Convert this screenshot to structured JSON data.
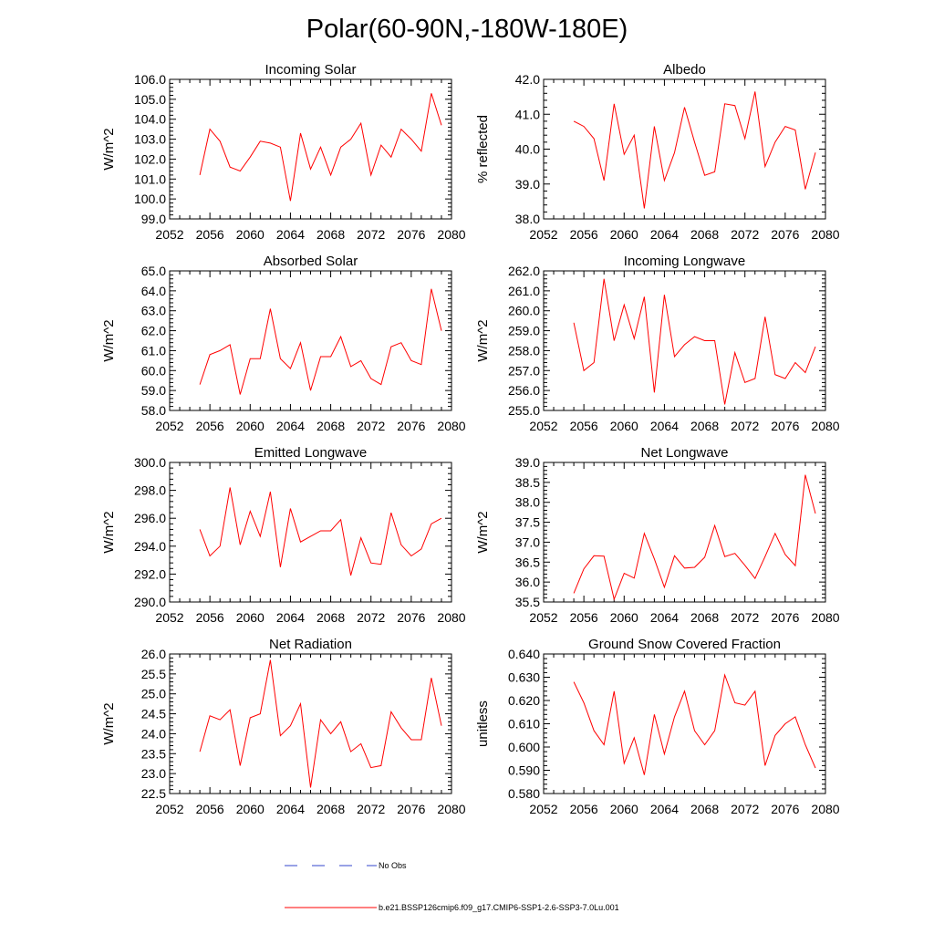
{
  "figure": {
    "title": "Polar(60-90N,-180W-180E)"
  },
  "legend": {
    "entries": [
      {
        "label": "No Obs",
        "color": "#3344cc",
        "style": "dashed"
      },
      {
        "label": "b.e21.BSSP126cmip6.f09_g17.CMIP6-SSP1-2.6-SSP3-7.0Lu.001",
        "color": "#ff0000",
        "style": "solid"
      }
    ]
  },
  "chart_data": [
    {
      "type": "line",
      "title": "Incoming Solar",
      "ylabel": "W/m^2",
      "xlim": [
        2052,
        2080
      ],
      "ylim": [
        99.0,
        106.0
      ],
      "xticks": [
        2052,
        2056,
        2060,
        2064,
        2068,
        2072,
        2076,
        2080
      ],
      "yticks": [
        "99.0",
        "100.0",
        "101.0",
        "102.0",
        "103.0",
        "104.0",
        "105.0",
        "106.0"
      ],
      "series": [
        {
          "color": "#ff0000",
          "x": [
            2055,
            2056,
            2057,
            2058,
            2059,
            2060,
            2061,
            2062,
            2063,
            2064,
            2065,
            2066,
            2067,
            2068,
            2069,
            2070,
            2071,
            2072,
            2073,
            2074,
            2075,
            2076,
            2077,
            2078,
            2079
          ],
          "values": [
            101.2,
            103.5,
            102.9,
            101.6,
            101.4,
            102.1,
            102.9,
            102.8,
            102.6,
            99.9,
            103.3,
            101.5,
            102.6,
            101.2,
            102.6,
            103.0,
            103.8,
            101.2,
            102.7,
            102.1,
            103.5,
            103.0,
            102.4,
            105.3,
            103.7
          ]
        }
      ]
    },
    {
      "type": "line",
      "title": "Albedo",
      "ylabel": "% reflected",
      "xlim": [
        2052,
        2080
      ],
      "ylim": [
        38.0,
        42.0
      ],
      "xticks": [
        2052,
        2056,
        2060,
        2064,
        2068,
        2072,
        2076,
        2080
      ],
      "yticks": [
        "38.0",
        "39.0",
        "40.0",
        "41.0",
        "42.0"
      ],
      "series": [
        {
          "color": "#ff0000",
          "x": [
            2055,
            2056,
            2057,
            2058,
            2059,
            2060,
            2061,
            2062,
            2063,
            2064,
            2065,
            2066,
            2067,
            2068,
            2069,
            2070,
            2071,
            2072,
            2073,
            2074,
            2075,
            2076,
            2077,
            2078,
            2079
          ],
          "values": [
            40.8,
            40.65,
            40.3,
            39.1,
            41.3,
            39.85,
            40.4,
            38.3,
            40.65,
            39.1,
            39.9,
            41.2,
            40.2,
            39.25,
            39.35,
            41.3,
            41.25,
            40.3,
            41.65,
            39.5,
            40.2,
            40.65,
            40.55,
            38.85,
            39.9
          ]
        }
      ]
    },
    {
      "type": "line",
      "title": "Absorbed Solar",
      "ylabel": "W/m^2",
      "xlim": [
        2052,
        2080
      ],
      "ylim": [
        58.0,
        65.0
      ],
      "xticks": [
        2052,
        2056,
        2060,
        2064,
        2068,
        2072,
        2076,
        2080
      ],
      "yticks": [
        "58.0",
        "59.0",
        "60.0",
        "61.0",
        "62.0",
        "63.0",
        "64.0",
        "65.0"
      ],
      "series": [
        {
          "color": "#ff0000",
          "x": [
            2055,
            2056,
            2057,
            2058,
            2059,
            2060,
            2061,
            2062,
            2063,
            2064,
            2065,
            2066,
            2067,
            2068,
            2069,
            2070,
            2071,
            2072,
            2073,
            2074,
            2075,
            2076,
            2077,
            2078,
            2079
          ],
          "values": [
            59.3,
            60.8,
            61.0,
            61.3,
            58.8,
            60.6,
            60.6,
            63.1,
            60.6,
            60.1,
            61.4,
            59.0,
            60.7,
            60.7,
            61.7,
            60.2,
            60.5,
            59.6,
            59.3,
            61.2,
            61.4,
            60.5,
            60.3,
            64.1,
            62.0
          ]
        }
      ]
    },
    {
      "type": "line",
      "title": "Incoming Longwave",
      "ylabel": "W/m^2",
      "xlim": [
        2052,
        2080
      ],
      "ylim": [
        255.0,
        262.0
      ],
      "xticks": [
        2052,
        2056,
        2060,
        2064,
        2068,
        2072,
        2076,
        2080
      ],
      "yticks": [
        "255.0",
        "256.0",
        "257.0",
        "258.0",
        "259.0",
        "260.0",
        "261.0",
        "262.0"
      ],
      "series": [
        {
          "color": "#ff0000",
          "x": [
            2055,
            2056,
            2057,
            2058,
            2059,
            2060,
            2061,
            2062,
            2063,
            2064,
            2065,
            2066,
            2067,
            2068,
            2069,
            2070,
            2071,
            2072,
            2073,
            2074,
            2075,
            2076,
            2077,
            2078,
            2079
          ],
          "values": [
            259.4,
            257.0,
            257.4,
            261.6,
            258.5,
            260.3,
            258.6,
            260.7,
            255.9,
            260.8,
            257.7,
            258.3,
            258.7,
            258.5,
            258.5,
            255.3,
            257.9,
            256.4,
            256.6,
            259.7,
            256.8,
            256.6,
            257.4,
            256.9,
            258.2
          ]
        }
      ]
    },
    {
      "type": "line",
      "title": "Emitted Longwave",
      "ylabel": "W/m^2",
      "xlim": [
        2052,
        2080
      ],
      "ylim": [
        290.0,
        300.0
      ],
      "xticks": [
        2052,
        2056,
        2060,
        2064,
        2068,
        2072,
        2076,
        2080
      ],
      "yticks": [
        "290.0",
        "292.0",
        "294.0",
        "296.0",
        "298.0",
        "300.0"
      ],
      "series": [
        {
          "color": "#ff0000",
          "x": [
            2055,
            2056,
            2057,
            2058,
            2059,
            2060,
            2061,
            2062,
            2063,
            2064,
            2065,
            2066,
            2067,
            2068,
            2069,
            2070,
            2071,
            2072,
            2073,
            2074,
            2075,
            2076,
            2077,
            2078,
            2079
          ],
          "values": [
            295.2,
            293.3,
            294.0,
            298.2,
            294.1,
            296.5,
            294.7,
            297.9,
            292.5,
            296.7,
            294.3,
            294.7,
            295.1,
            295.1,
            295.9,
            291.9,
            294.6,
            292.8,
            292.7,
            296.4,
            294.1,
            293.3,
            293.8,
            295.6,
            296.0
          ]
        }
      ]
    },
    {
      "type": "line",
      "title": "Net Longwave",
      "ylabel": "W/m^2",
      "xlim": [
        2052,
        2080
      ],
      "ylim": [
        35.5,
        39.0
      ],
      "xticks": [
        2052,
        2056,
        2060,
        2064,
        2068,
        2072,
        2076,
        2080
      ],
      "yticks": [
        "35.5",
        "36.0",
        "36.5",
        "37.0",
        "37.5",
        "38.0",
        "38.5",
        "39.0"
      ],
      "series": [
        {
          "color": "#ff0000",
          "x": [
            2055,
            2056,
            2057,
            2058,
            2059,
            2060,
            2061,
            2062,
            2063,
            2064,
            2065,
            2066,
            2067,
            2068,
            2069,
            2070,
            2071,
            2072,
            2073,
            2074,
            2075,
            2076,
            2077,
            2078,
            2079
          ],
          "values": [
            35.72,
            36.33,
            36.66,
            36.65,
            35.57,
            36.22,
            36.1,
            37.22,
            36.58,
            35.87,
            36.66,
            36.35,
            36.37,
            36.62,
            37.42,
            36.64,
            36.72,
            36.42,
            36.09,
            36.64,
            37.22,
            36.69,
            36.41,
            38.69,
            37.72
          ]
        }
      ]
    },
    {
      "type": "line",
      "title": "Net Radiation",
      "ylabel": "W/m^2",
      "xlim": [
        2052,
        2080
      ],
      "ylim": [
        22.5,
        26.0
      ],
      "xticks": [
        2052,
        2056,
        2060,
        2064,
        2068,
        2072,
        2076,
        2080
      ],
      "yticks": [
        "22.5",
        "23.0",
        "23.5",
        "24.0",
        "24.5",
        "25.0",
        "25.5",
        "26.0"
      ],
      "series": [
        {
          "color": "#ff0000",
          "x": [
            2055,
            2056,
            2057,
            2058,
            2059,
            2060,
            2061,
            2062,
            2063,
            2064,
            2065,
            2066,
            2067,
            2068,
            2069,
            2070,
            2071,
            2072,
            2073,
            2074,
            2075,
            2076,
            2077,
            2078,
            2079
          ],
          "values": [
            23.55,
            24.45,
            24.35,
            24.6,
            23.2,
            24.4,
            24.5,
            25.85,
            23.95,
            24.2,
            24.75,
            22.65,
            24.35,
            24.0,
            24.3,
            23.55,
            23.75,
            23.15,
            23.2,
            24.55,
            24.15,
            23.85,
            23.85,
            25.4,
            24.2
          ]
        }
      ]
    },
    {
      "type": "line",
      "title": "Ground Snow Covered Fraction",
      "ylabel": "unitless",
      "xlim": [
        2052,
        2080
      ],
      "ylim": [
        0.58,
        0.64
      ],
      "xticks": [
        2052,
        2056,
        2060,
        2064,
        2068,
        2072,
        2076,
        2080
      ],
      "yticks": [
        "0.580",
        "0.590",
        "0.600",
        "0.610",
        "0.620",
        "0.630",
        "0.640"
      ],
      "series": [
        {
          "color": "#ff0000",
          "x": [
            2055,
            2056,
            2057,
            2058,
            2059,
            2060,
            2061,
            2062,
            2063,
            2064,
            2065,
            2066,
            2067,
            2068,
            2069,
            2070,
            2071,
            2072,
            2073,
            2074,
            2075,
            2076,
            2077,
            2078,
            2079
          ],
          "values": [
            0.628,
            0.619,
            0.607,
            0.601,
            0.624,
            0.593,
            0.604,
            0.588,
            0.614,
            0.597,
            0.613,
            0.624,
            0.607,
            0.601,
            0.607,
            0.631,
            0.619,
            0.618,
            0.624,
            0.592,
            0.605,
            0.61,
            0.613,
            0.601,
            0.591
          ]
        }
      ]
    }
  ]
}
